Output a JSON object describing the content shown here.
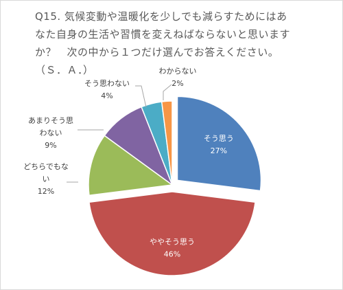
{
  "chart_data": {
    "type": "pie",
    "title_lines": [
      "Q15. 気候変動や温暖化を少しでも減らすためにはあ",
      "なた自身の生活や習慣を変えねばならないと思います",
      "か？　次の中から１つだけ選んでお答えください。",
      "（Ｓ．Ａ．）"
    ],
    "categories": [
      "そう思う",
      "ややそう思う",
      "どちらでもない",
      "あまりそう思わない",
      "そう思わない",
      "わからない"
    ],
    "values": [
      27,
      46,
      12,
      9,
      4,
      2
    ],
    "value_labels": [
      "27%",
      "46%",
      "12%",
      "9%",
      "4%",
      "2%"
    ],
    "label_lines": [
      [
        "そう思う"
      ],
      [
        "ややそう思う"
      ],
      [
        "どちらでもな",
        "い"
      ],
      [
        "あまりそう思",
        "わない"
      ],
      [
        "そう思わない"
      ],
      [
        "わからない"
      ]
    ],
    "colors": [
      "#4f81bd",
      "#c0504d",
      "#9bbb59",
      "#8064a2",
      "#4bacc6",
      "#f79646"
    ],
    "exploded": [
      true,
      true,
      false,
      false,
      false,
      false
    ]
  }
}
